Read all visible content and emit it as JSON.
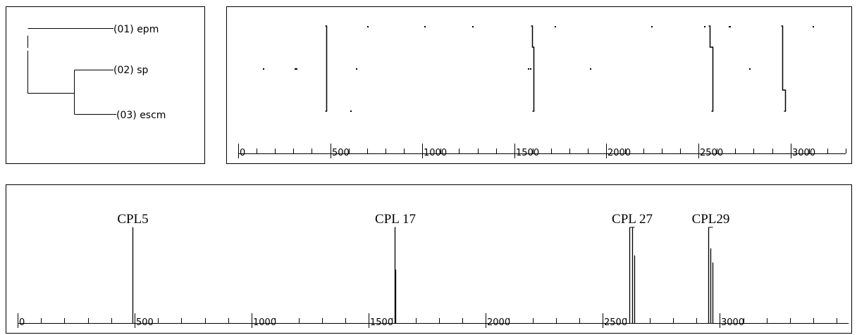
{
  "tree": {
    "leaves": [
      "(01) epm",
      "(02) sp",
      "(03) escm"
    ]
  },
  "tracks": {
    "axis": {
      "min": 0,
      "max": 3300,
      "major_ticks": [
        0,
        500,
        1000,
        1500,
        2000,
        2500,
        3000
      ],
      "major_labels": [
        "0",
        "500",
        "1000",
        "1500",
        "2000",
        "2500",
        "3000"
      ],
      "minor_step": 100
    },
    "rows": [
      {
        "name": "(01) epm",
        "dots": [
          700,
          1010,
          1270,
          1720,
          2245,
          2530,
          2665,
          2670,
          3120
        ]
      },
      {
        "name": "(02) sp",
        "dots": [
          135,
          305,
          315,
          640,
          1575,
          1585,
          1910,
          2775
        ]
      },
      {
        "name": "(03) escm",
        "dots": [
          610
        ]
      }
    ],
    "connectors": [
      {
        "x": [
          480,
          480,
          480
        ],
        "shape": "straight"
      },
      {
        "x": [
          1595,
          1605,
          1605
        ],
        "shape": "bend-mid"
      },
      {
        "x": [
          2560,
          2575,
          2575
        ],
        "shape": "bend-mid"
      },
      {
        "x": [
          2955,
          2955,
          2970
        ],
        "shape": "bend-low"
      }
    ]
  },
  "summary": {
    "axis": {
      "min": 0,
      "max": 3550,
      "major_ticks": [
        0,
        500,
        1000,
        1500,
        2000,
        2500,
        3000
      ],
      "major_labels": [
        "0",
        "500",
        "1000",
        "1500",
        "2000",
        "2500",
        "3000"
      ],
      "minor_step": 100
    },
    "markers": [
      {
        "label": "CPL5",
        "x": [
          490
        ]
      },
      {
        "label": "CPL 17",
        "x": [
          1610,
          1615
        ]
      },
      {
        "label": "CPL 27",
        "x": [
          2615,
          2625,
          2635
        ]
      },
      {
        "label": "CPL29",
        "x": [
          2950,
          2960,
          2970
        ]
      }
    ]
  },
  "colors": {
    "ink": "#000000",
    "background": "#ffffff"
  }
}
